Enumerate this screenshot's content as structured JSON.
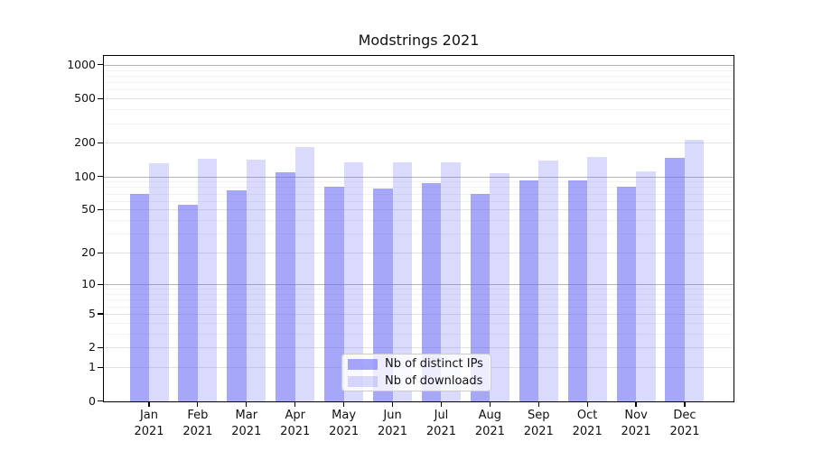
{
  "chart_data": {
    "type": "bar",
    "title": "Modstrings 2021",
    "categories": [
      "Jan 2021",
      "Feb 2021",
      "Mar 2021",
      "Apr 2021",
      "May 2021",
      "Jun 2021",
      "Jul 2021",
      "Aug 2021",
      "Sep 2021",
      "Oct 2021",
      "Nov 2021",
      "Dec 2021"
    ],
    "series": [
      {
        "name": "Nb of distinct IPs",
        "color": "rgba(100,100,244,0.57)",
        "values": [
          70,
          55,
          75,
          108,
          80,
          78,
          87,
          70,
          92,
          92,
          80,
          148
        ]
      },
      {
        "name": "Nb of downloads",
        "color": "rgba(100,100,244,0.24)",
        "values": [
          131,
          145,
          142,
          185,
          135,
          133,
          133,
          106,
          138,
          150,
          110,
          215
        ]
      }
    ],
    "yscale": "symlog",
    "yticks": [
      0,
      1,
      2,
      5,
      10,
      20,
      50,
      100,
      200,
      500,
      1000
    ],
    "ylim": [
      0,
      1200
    ],
    "grid": true,
    "legend_position": "inside-bottom-center"
  },
  "style": {
    "bar_base_color": "#6464f4",
    "grid_major_color": "#b4b4b4",
    "grid_mid_color": "#e2e2e2",
    "grid_minor_color": "#f2f2f2",
    "axis_color": "#000000",
    "text_color": "#111111",
    "legend_border_color": "#cccccc"
  }
}
